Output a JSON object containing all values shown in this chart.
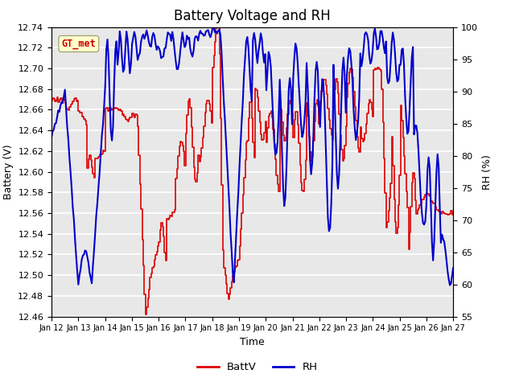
{
  "title": "Battery Voltage and RH",
  "xlabel": "Time",
  "ylabel_left": "Battery (V)",
  "ylabel_right": "RH (%)",
  "ylim_left": [
    12.46,
    12.74
  ],
  "ylim_right": [
    55,
    100
  ],
  "yticks_left": [
    12.46,
    12.48,
    12.5,
    12.52,
    12.54,
    12.56,
    12.58,
    12.6,
    12.62,
    12.64,
    12.66,
    12.68,
    12.7,
    12.72,
    12.74
  ],
  "yticks_right": [
    55,
    60,
    65,
    70,
    75,
    80,
    85,
    90,
    95,
    100
  ],
  "xtick_labels": [
    "Jan 12",
    "Jan 13",
    "Jan 14",
    "Jan 15",
    "Jan 16",
    "Jan 17",
    "Jan 18",
    "Jan 19",
    "Jan 20",
    "Jan 21",
    "Jan 22",
    "Jan 23",
    "Jan 24",
    "Jan 25",
    "Jan 26",
    "Jan 27"
  ],
  "color_batt": "#dd0000",
  "color_rh": "#0000cc",
  "background_color": "#e8e8e8",
  "grid_color": "#ffffff",
  "label_box_color": "#ffffcc",
  "label_text": "GT_met",
  "label_text_color": "#cc0000",
  "legend_batt": "BattV",
  "legend_rh": "RH",
  "title_fontsize": 12,
  "axis_label_fontsize": 9,
  "tick_fontsize": 8,
  "linewidth_batt": 1.2,
  "linewidth_rh": 1.5,
  "n_days": 15,
  "n_points": 360
}
